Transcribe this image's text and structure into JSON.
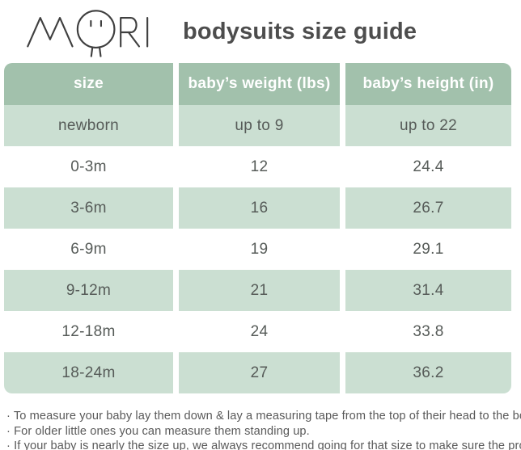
{
  "brand": {
    "logo_text": "MORI",
    "title": "bodysuits size guide"
  },
  "table": {
    "headers": [
      "size",
      "baby’s weight (lbs)",
      "baby’s height (in)"
    ],
    "rows": [
      [
        "newborn",
        "up to 9",
        "up to 22"
      ],
      [
        "0-3m",
        "12",
        "24.4"
      ],
      [
        "3-6m",
        "16",
        "26.7"
      ],
      [
        "6-9m",
        "19",
        "29.1"
      ],
      [
        "9-12m",
        "21",
        "31.4"
      ],
      [
        "12-18m",
        "24",
        "33.8"
      ],
      [
        "18-24m",
        "27",
        "36.2"
      ]
    ]
  },
  "notes": [
    "· To measure your baby lay them down & lay a measuring tape from the top of their head to the bottom of their heel.",
    "· For older little ones you can measure them standing up.",
    "· If your baby is nearly the size up, we always recommend going for that size to make sure the product lasts longer."
  ],
  "colors": {
    "page_bg": "#ffffff",
    "header_bg": "#a2c1ac",
    "header_text": "#ffffff",
    "row_green_bg": "#cbdfd2",
    "row_white_bg": "#ffffff",
    "cell_text": "#565b58",
    "title_text": "#4d4d4d",
    "note_text": "#595959",
    "logo_stroke": "#3f3f3f"
  }
}
